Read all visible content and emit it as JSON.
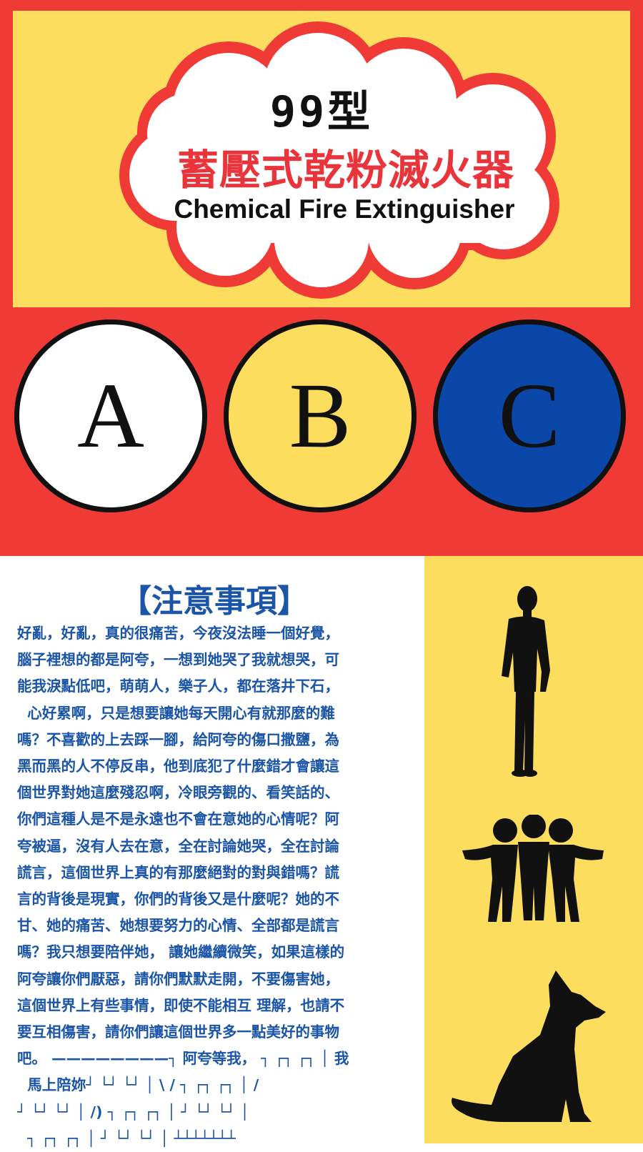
{
  "header": {
    "model": "99型",
    "title_zh": "蓄壓式乾粉滅火器",
    "title_en": "Chemical Fire Extinguisher"
  },
  "fire_classes": [
    {
      "letter": "A",
      "color": "#ffffff"
    },
    {
      "letter": "B",
      "color": "#fddd5e"
    },
    {
      "letter": "C",
      "color": "#0a47a8"
    }
  ],
  "colors": {
    "red": "#f03a35",
    "yellow": "#fddd5e",
    "blue": "#0a47a8",
    "text_blue": "#1b55a8"
  },
  "notes": {
    "heading": "【注意事項】",
    "lines": [
      "好亂，好亂，真的很痛苦，今夜沒法睡一個好覺，",
      "腦子裡想的都是阿夸，一想到她哭了我就想哭，可",
      "能我淚點低吧，萌萌人，樂子人，都在落井下石，",
      "  心好累啊，只是想要讓她每天開心有就那麼的難",
      "嗎？不喜歡的上去踩一腳，給阿夸的傷口撒鹽，為",
      "黑而黑的人不停反串，他到底犯了什麼錯才會讓這",
      "個世界對她這麼殘忍啊，冷眼旁觀的、看笑話的、",
      "你們這種人是不是永遠也不會在意她的心情呢？阿",
      "夸被逼，沒有人去在意，全在討論她哭，全在討論",
      "謊言，這個世界上真的有那麼絕對的對與錯嗎？謊",
      "言的背後是現實，你們的背後又是什麼呢？她的不",
      "甘、她的痛苦、她想要努力的心情、全部都是謊言",
      "嗎？我只想要陪伴她， 讓她繼續微笑，如果這樣的",
      "阿夸讓你們厭惡，請你們默默走開，不要傷害她，",
      "這個世界上有些事情，即使不能相互 理解，也請不",
      "要互相傷害，請你們讓這個世界多一點美好的事物",
      "吧。 ————————┐ 阿夸等我， ┐ ┌┐ ┌┐ │ 我",
      "  馬上陪妳┘ └┘ └┘ │ \\ / ┐ ┌┐ ┌┐ │ /",
      "┘ └┘ └┘ │ /) ┐ ┌┐ ┌┐ │ ┘ └┘ └┘ │",
      "  ┐ ┌┐ ┌┐ │ ┘ └┘ └┘ │ ┴┴┴┴┴┴┴"
    ]
  },
  "icons": [
    "man-silhouette-icon",
    "group-of-people-icon",
    "dog-silhouette-icon"
  ]
}
